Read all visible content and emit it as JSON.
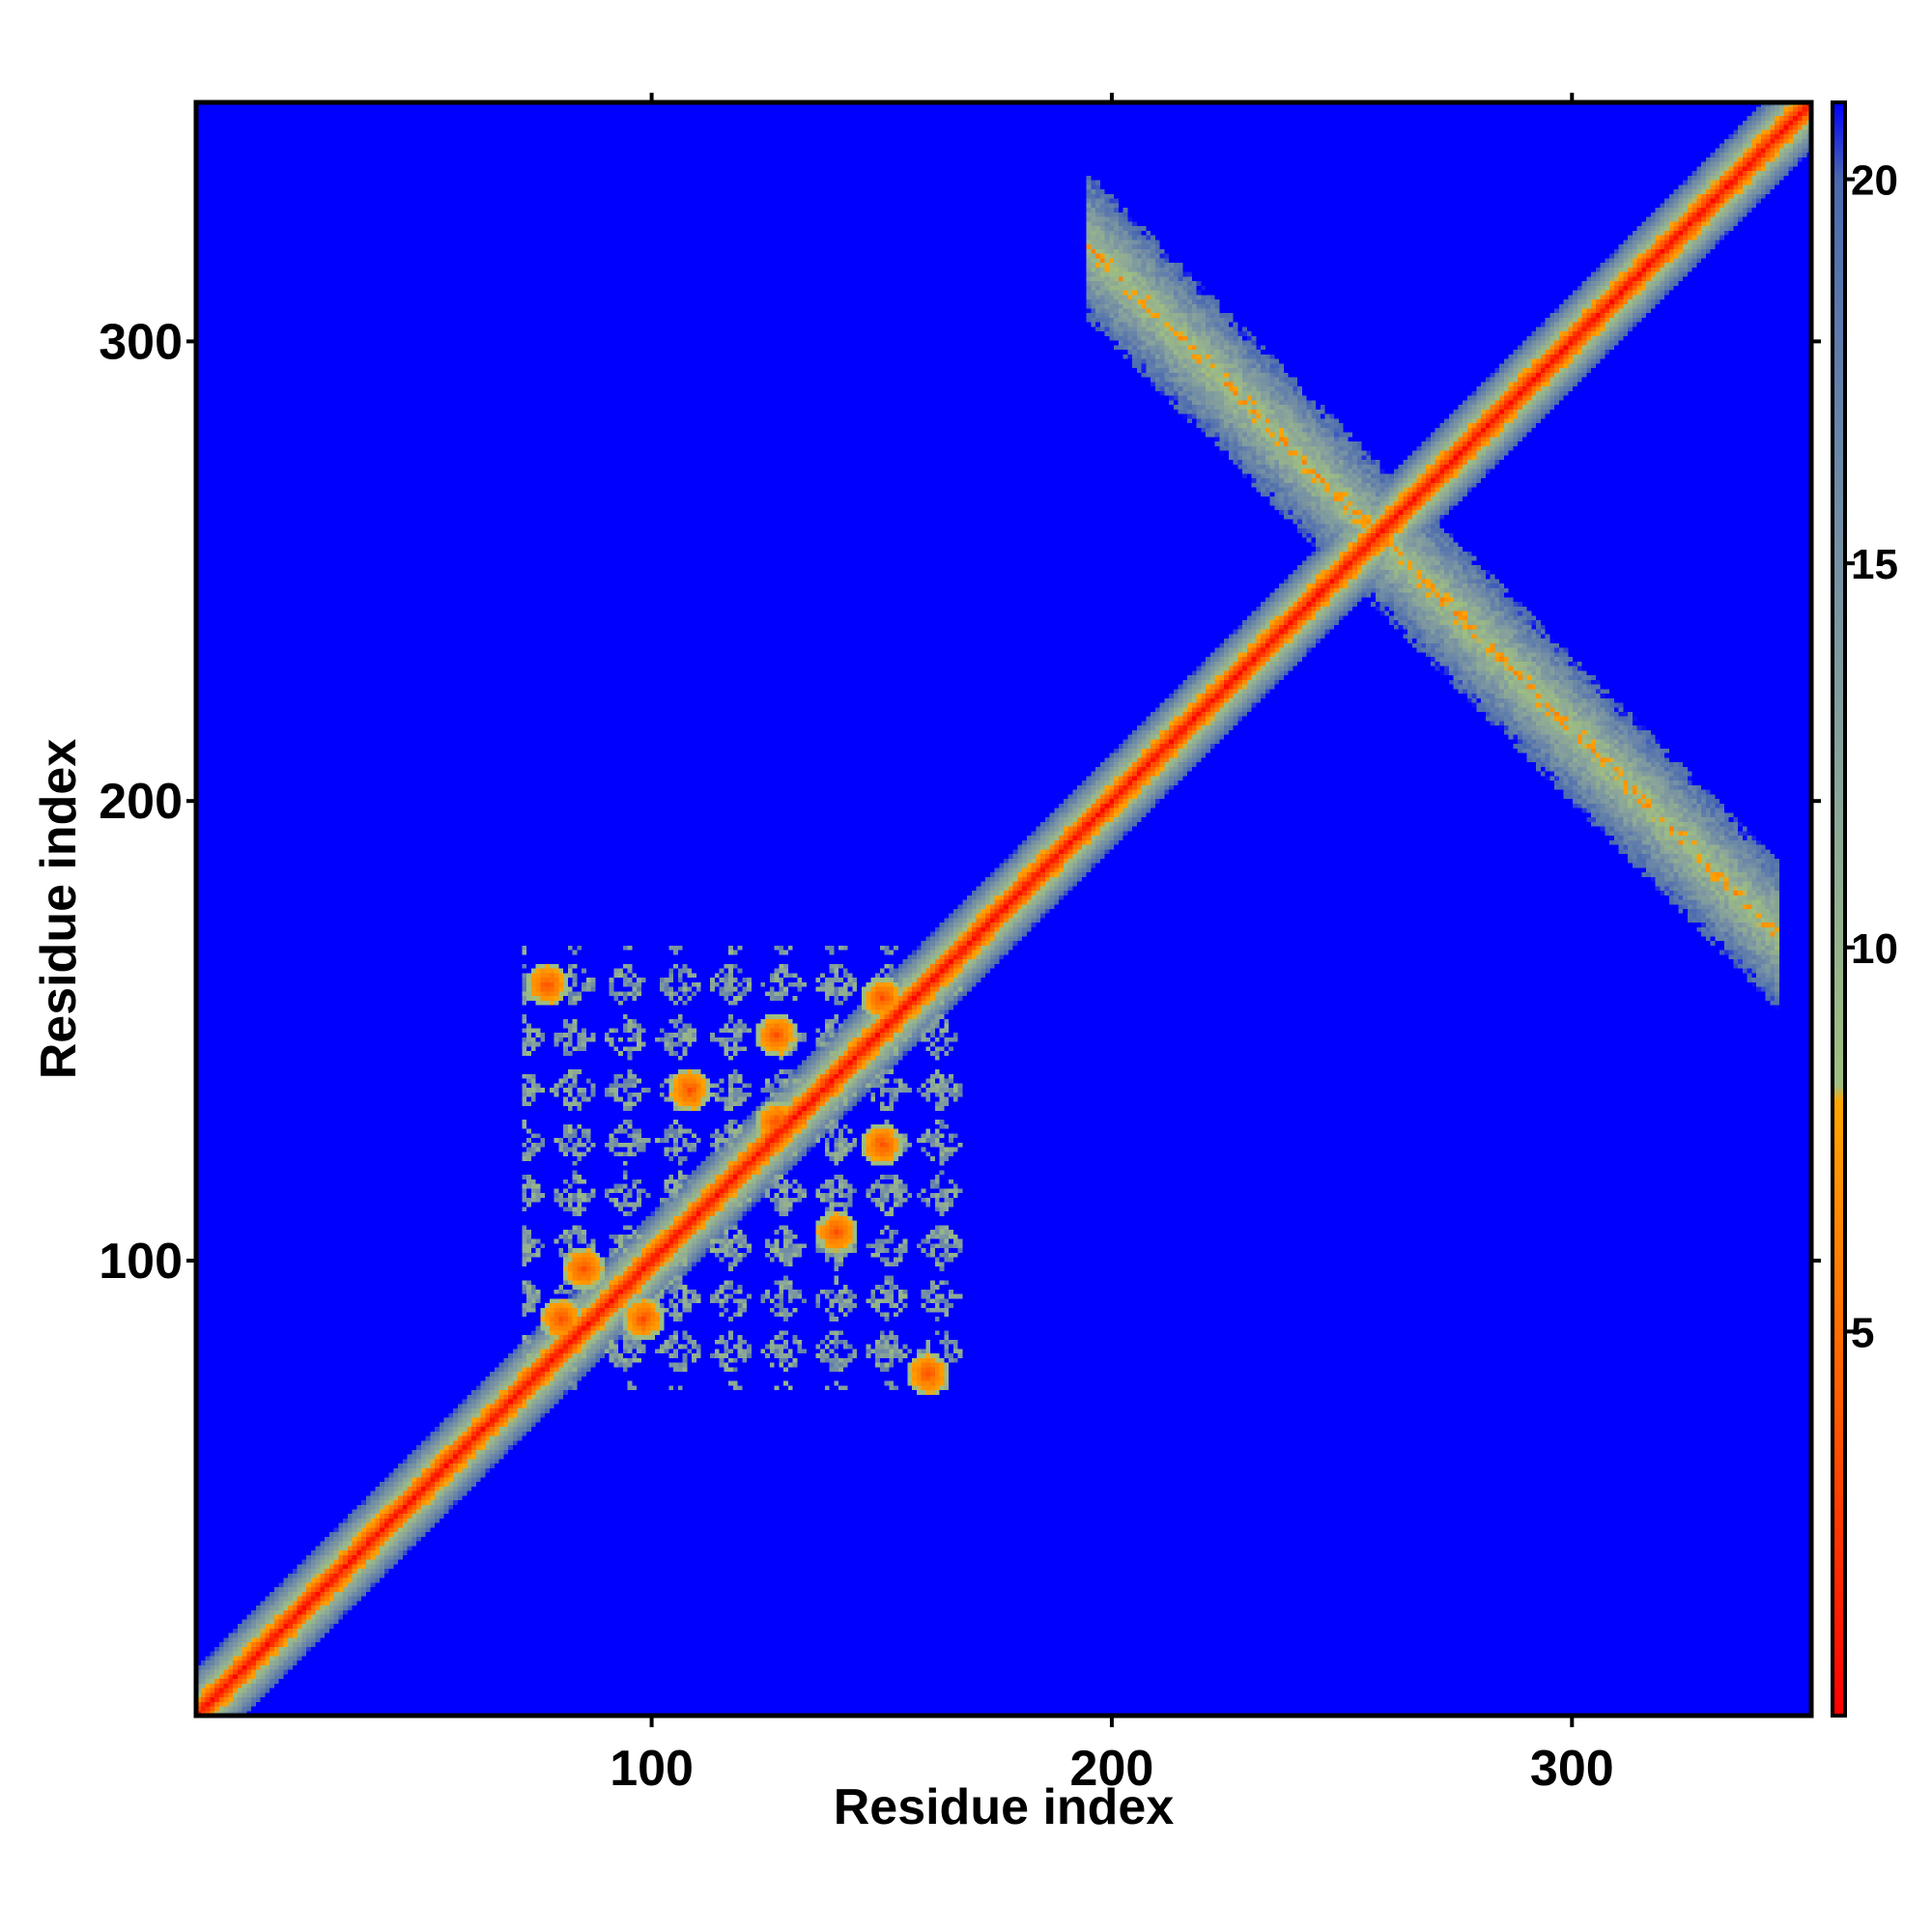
{
  "chart_data": {
    "type": "heatmap",
    "title": "",
    "xlabel": "Residue index",
    "ylabel": "Residue index",
    "xlim": [
      1,
      352
    ],
    "ylim": [
      1,
      352
    ],
    "x_ticks": [
      100,
      200,
      300
    ],
    "y_ticks": [
      100,
      200,
      300
    ],
    "x_tick_labels": [
      "100",
      "200",
      "300"
    ],
    "y_tick_labels": [
      "100",
      "200",
      "300"
    ],
    "grid": false,
    "colorbar": {
      "position": "right",
      "range": [
        0,
        21
      ],
      "ticks": [
        5,
        10,
        15,
        20
      ],
      "tick_labels": [
        "5",
        "10",
        "15",
        "20"
      ],
      "colors": [
        {
          "value": 0,
          "color": "#ff0000"
        },
        {
          "value": 4,
          "color": "#ff5a00"
        },
        {
          "value": 8,
          "color": "#ffa500"
        },
        {
          "value": 8.2,
          "color": "#9fbf80"
        },
        {
          "value": 12,
          "color": "#8aa59a"
        },
        {
          "value": 16,
          "color": "#6f8aa6"
        },
        {
          "value": 20,
          "color": "#4a6ab0"
        },
        {
          "value": 21,
          "color": "#0000ff"
        }
      ]
    },
    "background_value": 21,
    "background_color": "#0000ff",
    "features": [
      {
        "kind": "diagonal",
        "from": 1,
        "to": 352,
        "width": 5
      },
      {
        "kind": "antidiagonal",
        "x_range": [
          195,
          345
        ],
        "center": 258,
        "width": 6
      },
      {
        "kind": "domain_block",
        "x_range": [
          72,
          168
        ],
        "y_range": [
          72,
          168
        ]
      }
    ],
    "contact_hotspots": [
      {
        "x": 77,
        "y": 160
      },
      {
        "x": 127,
        "y": 149
      },
      {
        "x": 108,
        "y": 137
      },
      {
        "x": 127,
        "y": 130
      },
      {
        "x": 150,
        "y": 125
      },
      {
        "x": 140,
        "y": 106
      },
      {
        "x": 85,
        "y": 98
      },
      {
        "x": 80,
        "y": 87
      },
      {
        "x": 98,
        "y": 87
      },
      {
        "x": 160,
        "y": 75
      },
      {
        "x": 150,
        "y": 157
      }
    ]
  }
}
